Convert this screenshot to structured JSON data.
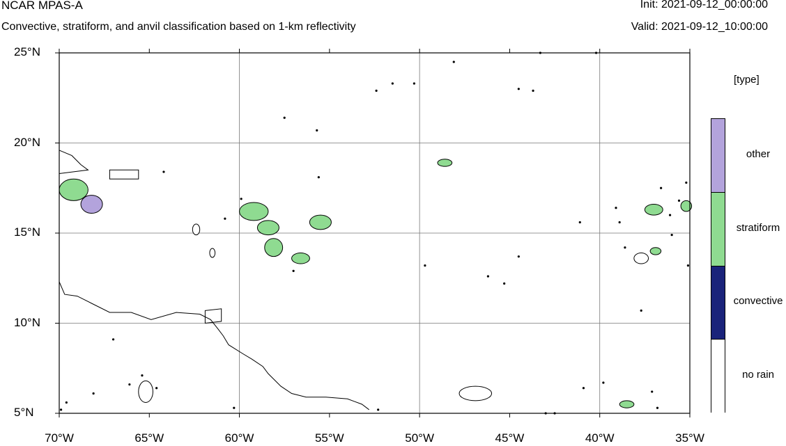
{
  "header": {
    "title": "NCAR MPAS-A",
    "subtitle": "Convective, stratiform, and anvil classification based on 1-km reflectivity",
    "init": "Init: 2021-09-12_00:00:00",
    "valid": "Valid: 2021-09-12_10:00:00"
  },
  "map": {
    "lon_range": [
      -70,
      -35
    ],
    "lat_range": [
      5,
      25
    ],
    "x_ticks": [
      {
        "value": -70,
        "label": "70°W"
      },
      {
        "value": -65,
        "label": "65°W"
      },
      {
        "value": -60,
        "label": "60°W"
      },
      {
        "value": -55,
        "label": "55°W"
      },
      {
        "value": -50,
        "label": "50°W"
      },
      {
        "value": -45,
        "label": "45°W"
      },
      {
        "value": -40,
        "label": "40°W"
      },
      {
        "value": -35,
        "label": "35°W"
      }
    ],
    "y_ticks": [
      {
        "value": 25,
        "label": "25°N"
      },
      {
        "value": 20,
        "label": "20°N"
      },
      {
        "value": 15,
        "label": "15°N"
      },
      {
        "value": 10,
        "label": "10°N"
      },
      {
        "value": 5,
        "label": "5°N"
      }
    ],
    "grid_lons": [
      -60,
      -50,
      -40
    ],
    "grid_lats": [
      20,
      15,
      10
    ],
    "colors": {
      "other": "#b3a3dc",
      "stratiform": "#8fdb91",
      "convective": "#1a237a",
      "no_rain": "#ffffff",
      "outline": "#000000",
      "grid": "#777777"
    },
    "coastline_south_america": [
      [
        -70,
        12.3
      ],
      [
        -69.7,
        11.6
      ],
      [
        -69,
        11.5
      ],
      [
        -68.2,
        11.1
      ],
      [
        -67.2,
        10.6
      ],
      [
        -66,
        10.6
      ],
      [
        -64.9,
        10.2
      ],
      [
        -63.5,
        10.6
      ],
      [
        -62.2,
        10.5
      ],
      [
        -61.6,
        10.2
      ],
      [
        -61.2,
        9.7
      ],
      [
        -60.9,
        9.3
      ],
      [
        -60.6,
        8.8
      ],
      [
        -59.8,
        8.3
      ],
      [
        -59.3,
        8.0
      ],
      [
        -58.7,
        7.6
      ],
      [
        -58.4,
        7.2
      ],
      [
        -57.7,
        6.5
      ],
      [
        -57.1,
        6.1
      ],
      [
        -56.3,
        5.9
      ],
      [
        -55.2,
        5.9
      ],
      [
        -54.0,
        5.8
      ],
      [
        -53.2,
        5.5
      ],
      [
        -52.8,
        5.2
      ]
    ],
    "coastline_hispaniola": [
      [
        -70,
        19.6
      ],
      [
        -69.3,
        19.3
      ],
      [
        -68.8,
        18.8
      ],
      [
        -68.4,
        18.5
      ],
      [
        -69.2,
        18.4
      ],
      [
        -70,
        18.3
      ]
    ],
    "coastline_puerto_rico": [
      [
        -67.2,
        18.5
      ],
      [
        -65.6,
        18.5
      ],
      [
        -65.6,
        18.0
      ],
      [
        -67.2,
        18.0
      ]
    ],
    "trinidad": [
      [
        -61.9,
        10.7
      ],
      [
        -61.0,
        10.8
      ],
      [
        -61.0,
        10.1
      ],
      [
        -61.9,
        10.0
      ]
    ],
    "rain_cells": [
      {
        "lon": -69.2,
        "lat": 17.4,
        "rx": 0.8,
        "ry": 0.6,
        "type": "stratiform"
      },
      {
        "lon": -68.2,
        "lat": 16.6,
        "rx": 0.6,
        "ry": 0.5,
        "type": "other"
      },
      {
        "lon": -59.2,
        "lat": 16.2,
        "rx": 0.8,
        "ry": 0.5,
        "type": "stratiform"
      },
      {
        "lon": -58.4,
        "lat": 15.3,
        "rx": 0.6,
        "ry": 0.4,
        "type": "stratiform"
      },
      {
        "lon": -58.1,
        "lat": 14.2,
        "rx": 0.5,
        "ry": 0.5,
        "type": "stratiform"
      },
      {
        "lon": -56.6,
        "lat": 13.6,
        "rx": 0.5,
        "ry": 0.3,
        "type": "stratiform"
      },
      {
        "lon": -55.5,
        "lat": 15.6,
        "rx": 0.6,
        "ry": 0.4,
        "type": "stratiform"
      },
      {
        "lon": -48.6,
        "lat": 18.9,
        "rx": 0.4,
        "ry": 0.2,
        "type": "stratiform"
      },
      {
        "lon": -46.9,
        "lat": 6.1,
        "rx": 0.9,
        "ry": 0.4,
        "type": "no_rain"
      },
      {
        "lon": -38.5,
        "lat": 5.5,
        "rx": 0.4,
        "ry": 0.2,
        "type": "stratiform"
      },
      {
        "lon": -37.0,
        "lat": 16.3,
        "rx": 0.5,
        "ry": 0.3,
        "type": "stratiform"
      },
      {
        "lon": -36.9,
        "lat": 14.0,
        "rx": 0.3,
        "ry": 0.2,
        "type": "stratiform"
      },
      {
        "lon": -37.7,
        "lat": 13.6,
        "rx": 0.4,
        "ry": 0.3,
        "type": "no_rain"
      },
      {
        "lon": -35.2,
        "lat": 16.5,
        "rx": 0.3,
        "ry": 0.3,
        "type": "stratiform"
      },
      {
        "lon": -65.2,
        "lat": 6.2,
        "rx": 0.4,
        "ry": 0.6,
        "type": "no_rain"
      },
      {
        "lon": -62.4,
        "lat": 15.2,
        "rx": 0.2,
        "ry": 0.3,
        "type": "no_rain"
      },
      {
        "lon": -61.5,
        "lat": 13.9,
        "rx": 0.15,
        "ry": 0.25,
        "type": "no_rain"
      }
    ],
    "rain_dots": [
      [
        -57.5,
        21.4
      ],
      [
        -51.5,
        23.3
      ],
      [
        -50.3,
        23.3
      ],
      [
        -52.4,
        22.9
      ],
      [
        -44.5,
        23.0
      ],
      [
        -43.7,
        22.9
      ],
      [
        -55.6,
        18.1
      ],
      [
        -55.7,
        20.7
      ],
      [
        -59.9,
        16.9
      ],
      [
        -48.1,
        24.5
      ],
      [
        -40.2,
        25.0
      ],
      [
        -43.3,
        25.0
      ],
      [
        -60.8,
        15.8
      ],
      [
        -57.0,
        12.9
      ],
      [
        -46.2,
        12.6
      ],
      [
        -45.3,
        12.2
      ],
      [
        -44.5,
        13.7
      ],
      [
        -49.7,
        13.2
      ],
      [
        -64.2,
        18.4
      ],
      [
        -67.0,
        9.1
      ],
      [
        -66.1,
        6.6
      ],
      [
        -65.4,
        7.1
      ],
      [
        -64.6,
        6.4
      ],
      [
        -60.3,
        5.3
      ],
      [
        -68.1,
        6.1
      ],
      [
        -69.9,
        5.2
      ],
      [
        -69.6,
        5.6
      ],
      [
        -39.8,
        6.7
      ],
      [
        -40.9,
        6.4
      ],
      [
        -43.0,
        5.0
      ],
      [
        -42.5,
        5.0
      ],
      [
        -37.1,
        6.2
      ],
      [
        -36.8,
        5.3
      ],
      [
        -36.0,
        14.9
      ],
      [
        -35.1,
        13.2
      ],
      [
        -37.7,
        10.7
      ],
      [
        -38.9,
        15.6
      ],
      [
        -38.6,
        14.2
      ],
      [
        -39.1,
        16.4
      ],
      [
        -36.1,
        16.0
      ],
      [
        -36.6,
        17.5
      ],
      [
        -35.2,
        17.8
      ],
      [
        -35.6,
        16.8
      ],
      [
        -41.1,
        15.6
      ],
      [
        -52.3,
        5.2
      ]
    ]
  },
  "legend": {
    "title": "[type]",
    "entries": [
      {
        "label": "other",
        "color": "#b3a3dc"
      },
      {
        "label": "stratiform",
        "color": "#8fdb91"
      },
      {
        "label": "convective",
        "color": "#1a237a"
      },
      {
        "label": "no rain",
        "color": "#ffffff"
      }
    ]
  }
}
